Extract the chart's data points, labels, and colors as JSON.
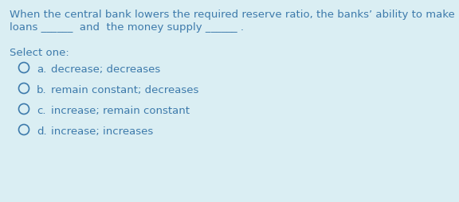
{
  "background_color": "#daeef3",
  "text_color": "#3d7aab",
  "question_line1": "When the central bank lowers the required reserve ratio, the banks’ ability to make",
  "question_line2": "loans ______  and  the money supply ______ .",
  "select_label": "Select one:",
  "options": [
    {
      "label": "a.",
      "text": "decrease; decreases"
    },
    {
      "label": "b.",
      "text": "remain constant; decreases"
    },
    {
      "label": "c.",
      "text": "increase; remain constant"
    },
    {
      "label": "d.",
      "text": "increase; increases"
    }
  ],
  "font_size_question": 9.5,
  "font_size_options": 9.5,
  "font_size_select": 9.5,
  "figsize": [
    5.76,
    2.54
  ],
  "dpi": 100
}
